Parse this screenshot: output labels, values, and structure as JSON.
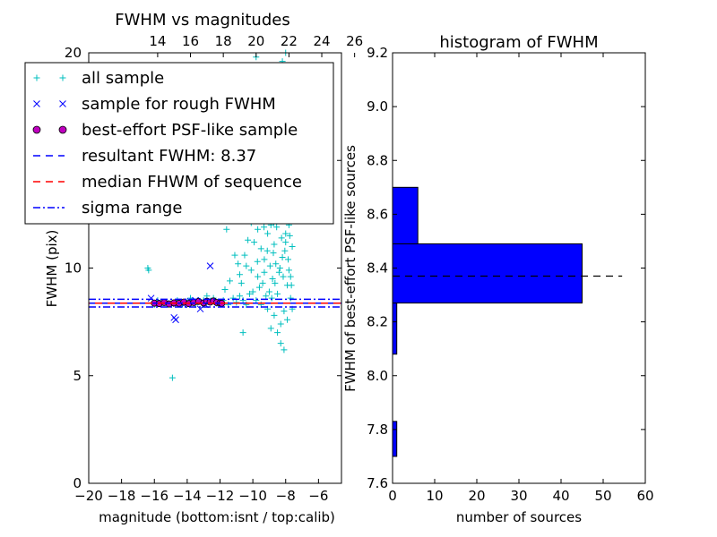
{
  "chart_data": [
    {
      "type": "scatter",
      "title": "FWHM vs magnitudes",
      "xlabel": "magnitude (bottom:isnt / top:calib)",
      "ylabel": "FWHM (pix)",
      "xlim": [
        -20,
        -4.6
      ],
      "ylim": [
        0,
        20
      ],
      "xticks": [
        "−20",
        "−18",
        "−16",
        "−14",
        "−12",
        "−10",
        "−8",
        "−6"
      ],
      "xtick_values": [
        -20,
        -18,
        -16,
        -14,
        -12,
        -10,
        -8,
        -6
      ],
      "yticks": [
        "0",
        "5",
        "10",
        "15",
        "20"
      ],
      "ytick_values": [
        0,
        5,
        10,
        15,
        20
      ],
      "top_axis": {
        "ticks": [
          "14",
          "16",
          "18",
          "20",
          "22",
          "24",
          "26"
        ],
        "values": [
          14,
          16,
          18,
          20,
          22,
          24,
          26
        ],
        "offset": 29.8
      },
      "legend": {
        "placement": "top-left",
        "entries": [
          {
            "label": "all sample",
            "marker": "+",
            "color": "#00bfbf"
          },
          {
            "label": "sample for rough FWHM",
            "marker": "x",
            "color": "#0000ff"
          },
          {
            "label": "best-effort PSF-like sample",
            "marker": "o",
            "color": "#bf00bf"
          },
          {
            "label": "resultant FWHM: 8.37",
            "line": "dashed",
            "color": "#0000ff"
          },
          {
            "label": "median FHWM of sequence",
            "line": "dashed",
            "color": "#ff0000"
          },
          {
            "label": "sigma range",
            "line": "dashdot",
            "color": "#0000ff"
          }
        ]
      },
      "hlines": [
        {
          "y": 8.37,
          "style": "dashed",
          "color": "#0000ff"
        },
        {
          "y": 8.37,
          "style": "dashed",
          "color": "#ff0000"
        },
        {
          "y": 8.55,
          "style": "dashdot",
          "color": "#0000ff"
        },
        {
          "y": 8.19,
          "style": "dashdot",
          "color": "#0000ff"
        }
      ],
      "series": [
        {
          "name": "all sample",
          "marker": "+",
          "color": "#00bfbf",
          "points": [
            [
              -16.4,
              10.0
            ],
            [
              -16.35,
              9.9
            ],
            [
              -14.9,
              4.9
            ],
            [
              -15.8,
              8.5
            ],
            [
              -15.2,
              8.3
            ],
            [
              -14.6,
              8.5
            ],
            [
              -14.0,
              8.4
            ],
            [
              -13.5,
              8.3
            ],
            [
              -13.0,
              8.5
            ],
            [
              -12.6,
              8.4
            ],
            [
              -12.2,
              8.35
            ],
            [
              -12.0,
              8.4
            ],
            [
              -11.8,
              8.5
            ],
            [
              -11.5,
              8.3
            ],
            [
              -11.2,
              8.6
            ],
            [
              -11.0,
              8.4
            ],
            [
              -10.8,
              8.7
            ],
            [
              -10.6,
              8.5
            ],
            [
              -10.4,
              8.3
            ],
            [
              -10.2,
              8.8
            ],
            [
              -10.0,
              8.9
            ],
            [
              -9.8,
              8.5
            ],
            [
              -9.6,
              9.1
            ],
            [
              -9.4,
              9.3
            ],
            [
              -9.2,
              8.7
            ],
            [
              -9.0,
              8.9
            ],
            [
              -8.8,
              9.5
            ],
            [
              -8.6,
              10.2
            ],
            [
              -8.4,
              9.8
            ],
            [
              -8.2,
              10.5
            ],
            [
              -8.0,
              11.2
            ],
            [
              -7.8,
              9.9
            ],
            [
              -7.6,
              8.1
            ],
            [
              -7.7,
              8.6
            ],
            [
              -7.9,
              9.2
            ],
            [
              -8.1,
              8.0
            ],
            [
              -8.3,
              7.4
            ],
            [
              -8.5,
              8.8
            ],
            [
              -8.7,
              11.1
            ],
            [
              -8.9,
              12.0
            ],
            [
              -9.1,
              11.6
            ],
            [
              -9.3,
              10.4
            ],
            [
              -9.5,
              10.9
            ],
            [
              -9.7,
              11.8
            ],
            [
              -9.9,
              12.8
            ],
            [
              -10.1,
              12.1
            ],
            [
              -10.3,
              11.3
            ],
            [
              -10.5,
              10.6
            ],
            [
              -10.7,
              9.3
            ],
            [
              -11.1,
              10.6
            ],
            [
              -11.6,
              11.8
            ],
            [
              -11.3,
              12.2
            ],
            [
              -10.9,
              10.2
            ],
            [
              -10.6,
              7.0
            ],
            [
              -9.8,
              19.8
            ],
            [
              -9.5,
              19.4
            ],
            [
              -8.0,
              20.0
            ],
            [
              -8.2,
              19.6
            ],
            [
              -8.4,
              17.8
            ],
            [
              -8.6,
              16.4
            ],
            [
              -8.8,
              15.7
            ],
            [
              -9.0,
              16.8
            ],
            [
              -9.2,
              15.5
            ],
            [
              -9.4,
              14.6
            ],
            [
              -9.6,
              13.9
            ],
            [
              -9.9,
              14.8
            ],
            [
              -10.0,
              13.4
            ],
            [
              -8.1,
              14.2
            ],
            [
              -7.9,
              13.6
            ],
            [
              -7.7,
              12.7
            ],
            [
              -7.8,
              12.0
            ],
            [
              -8.0,
              11.6
            ],
            [
              -8.2,
              12.9
            ],
            [
              -8.4,
              13.8
            ],
            [
              -8.6,
              14.6
            ],
            [
              -8.8,
              13.2
            ],
            [
              -9.0,
              12.5
            ],
            [
              -9.3,
              13.1
            ],
            [
              -7.6,
              11.0
            ],
            [
              -7.7,
              9.6
            ],
            [
              -7.9,
              7.6
            ],
            [
              -8.1,
              6.2
            ],
            [
              -8.3,
              6.5
            ],
            [
              -8.5,
              7.0
            ],
            [
              -8.7,
              7.8
            ],
            [
              -8.9,
              7.2
            ],
            [
              -9.1,
              8.1
            ],
            [
              -9.3,
              9.8
            ],
            [
              -9.5,
              8.3
            ],
            [
              -9.7,
              9.6
            ],
            [
              -10.1,
              9.9
            ],
            [
              -10.4,
              10.1
            ],
            [
              -10.8,
              9.7
            ],
            [
              -11.4,
              9.4
            ],
            [
              -11.7,
              9.0
            ],
            [
              -12.4,
              8.6
            ],
            [
              -12.8,
              8.7
            ],
            [
              -13.3,
              8.5
            ],
            [
              -13.8,
              8.6
            ],
            [
              -14.3,
              8.3
            ],
            [
              -15.5,
              8.4
            ],
            [
              -16.0,
              8.3
            ],
            [
              -8.05,
              10.8
            ],
            [
              -8.15,
              9.6
            ],
            [
              -8.25,
              11.4
            ],
            [
              -8.35,
              10.0
            ],
            [
              -8.45,
              12.4
            ],
            [
              -8.55,
              11.9
            ],
            [
              -8.65,
              9.3
            ],
            [
              -8.75,
              10.7
            ],
            [
              -8.85,
              8.6
            ],
            [
              -8.95,
              10.1
            ],
            [
              -7.85,
              10.4
            ],
            [
              -7.75,
              11.5
            ],
            [
              -7.65,
              9.2
            ],
            [
              -7.95,
              12.8
            ],
            [
              -8.12,
              13.3
            ],
            [
              -8.32,
              15.1
            ],
            [
              -8.52,
              13.0
            ],
            [
              -8.72,
              12.1
            ],
            [
              -8.92,
              14.0
            ],
            [
              -9.12,
              10.8
            ],
            [
              -9.32,
              11.9
            ],
            [
              -9.52,
              12.7
            ],
            [
              -9.72,
              10.3
            ],
            [
              -9.92,
              11.2
            ]
          ]
        },
        {
          "name": "sample for rough FWHM",
          "marker": "x",
          "color": "#0000ff",
          "points": [
            [
              -16.2,
              8.6
            ],
            [
              -14.8,
              7.7
            ],
            [
              -14.7,
              7.6
            ],
            [
              -12.6,
              10.1
            ],
            [
              -13.2,
              8.1
            ],
            [
              -15.6,
              8.4
            ],
            [
              -14.2,
              8.3
            ],
            [
              -13.5,
              8.5
            ],
            [
              -12.9,
              8.3
            ],
            [
              -12.1,
              8.4
            ],
            [
              -15.0,
              8.35
            ],
            [
              -13.8,
              8.45
            ]
          ]
        },
        {
          "name": "best-effort PSF-like sample",
          "marker": "o",
          "color": "#bf00bf",
          "points": [
            [
              -16.0,
              8.37
            ],
            [
              -15.7,
              8.35
            ],
            [
              -15.4,
              8.4
            ],
            [
              -15.1,
              8.33
            ],
            [
              -14.8,
              8.38
            ],
            [
              -14.5,
              8.36
            ],
            [
              -14.2,
              8.42
            ],
            [
              -13.9,
              8.35
            ],
            [
              -13.6,
              8.4
            ],
            [
              -13.3,
              8.45
            ],
            [
              -13.0,
              8.38
            ],
            [
              -12.8,
              8.46
            ],
            [
              -12.6,
              8.42
            ],
            [
              -12.4,
              8.47
            ],
            [
              -12.2,
              8.4
            ],
            [
              -12.0,
              8.38
            ],
            [
              -11.9,
              8.36
            ]
          ]
        }
      ]
    },
    {
      "type": "bar",
      "orientation": "horizontal",
      "title": "histogram of FWHM",
      "xlabel": "number of sources",
      "ylabel": "FWHM of best-effort PSF-like sources",
      "xlim": [
        0,
        60
      ],
      "ylim": [
        7.6,
        9.2
      ],
      "xticks": [
        "0",
        "10",
        "20",
        "30",
        "40",
        "50",
        "60"
      ],
      "xtick_values": [
        0,
        10,
        20,
        30,
        40,
        50,
        60
      ],
      "yticks": [
        "7.6",
        "7.8",
        "8.0",
        "8.2",
        "8.4",
        "8.6",
        "8.8",
        "9.0",
        "9.2"
      ],
      "ytick_values": [
        7.6,
        7.8,
        8.0,
        8.2,
        8.4,
        8.6,
        8.8,
        9.0,
        9.2
      ],
      "color": "#0000ff",
      "bins": [
        {
          "start": 7.7,
          "end": 7.83,
          "count": 1
        },
        {
          "start": 7.83,
          "end": 7.96,
          "count": 0
        },
        {
          "start": 7.96,
          "end": 8.08,
          "count": 0
        },
        {
          "start": 8.08,
          "end": 8.27,
          "count": 1
        },
        {
          "start": 8.27,
          "end": 8.49,
          "count": 45
        },
        {
          "start": 8.49,
          "end": 8.7,
          "count": 6
        }
      ],
      "hline": {
        "y": 8.37,
        "x": [
          0,
          54.5
        ],
        "style": "dashed",
        "color": "#000000"
      }
    }
  ]
}
